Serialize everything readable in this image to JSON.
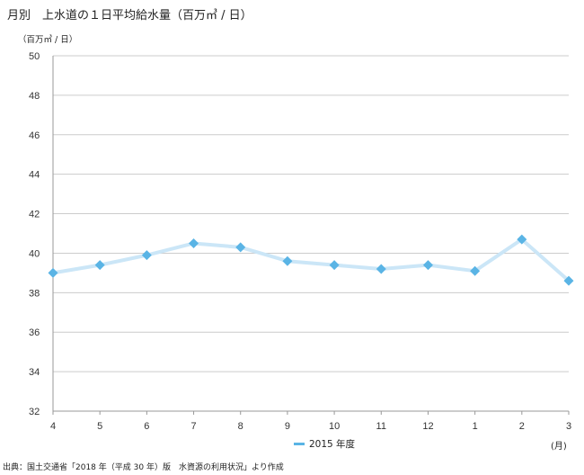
{
  "title": "月別　上水道の１日平均給水量（百万㎥ / 日）",
  "source": "出典：国土交通省「2018 年（平成 30 年）版　水資源の利用状況」より作成",
  "colors": {
    "line": "#cbe6f7",
    "marker": "#5ab4e5",
    "grid": "#cccccc"
  },
  "chart_data": {
    "type": "line",
    "ylabel": "（百万㎥ / 日）",
    "xlabel": "(月)",
    "categories": [
      "4",
      "5",
      "6",
      "7",
      "8",
      "9",
      "10",
      "11",
      "12",
      "1",
      "2",
      "3"
    ],
    "series": [
      {
        "name": "2015 年度",
        "values": [
          39.0,
          39.4,
          39.9,
          40.5,
          40.3,
          39.6,
          39.4,
          39.2,
          39.4,
          39.1,
          40.7,
          38.6
        ]
      }
    ],
    "ylim": [
      32,
      50
    ],
    "yticks": [
      32,
      34,
      36,
      38,
      40,
      42,
      44,
      46,
      48,
      50
    ],
    "grid": true,
    "legend": "bottom-center",
    "marker": "diamond"
  }
}
